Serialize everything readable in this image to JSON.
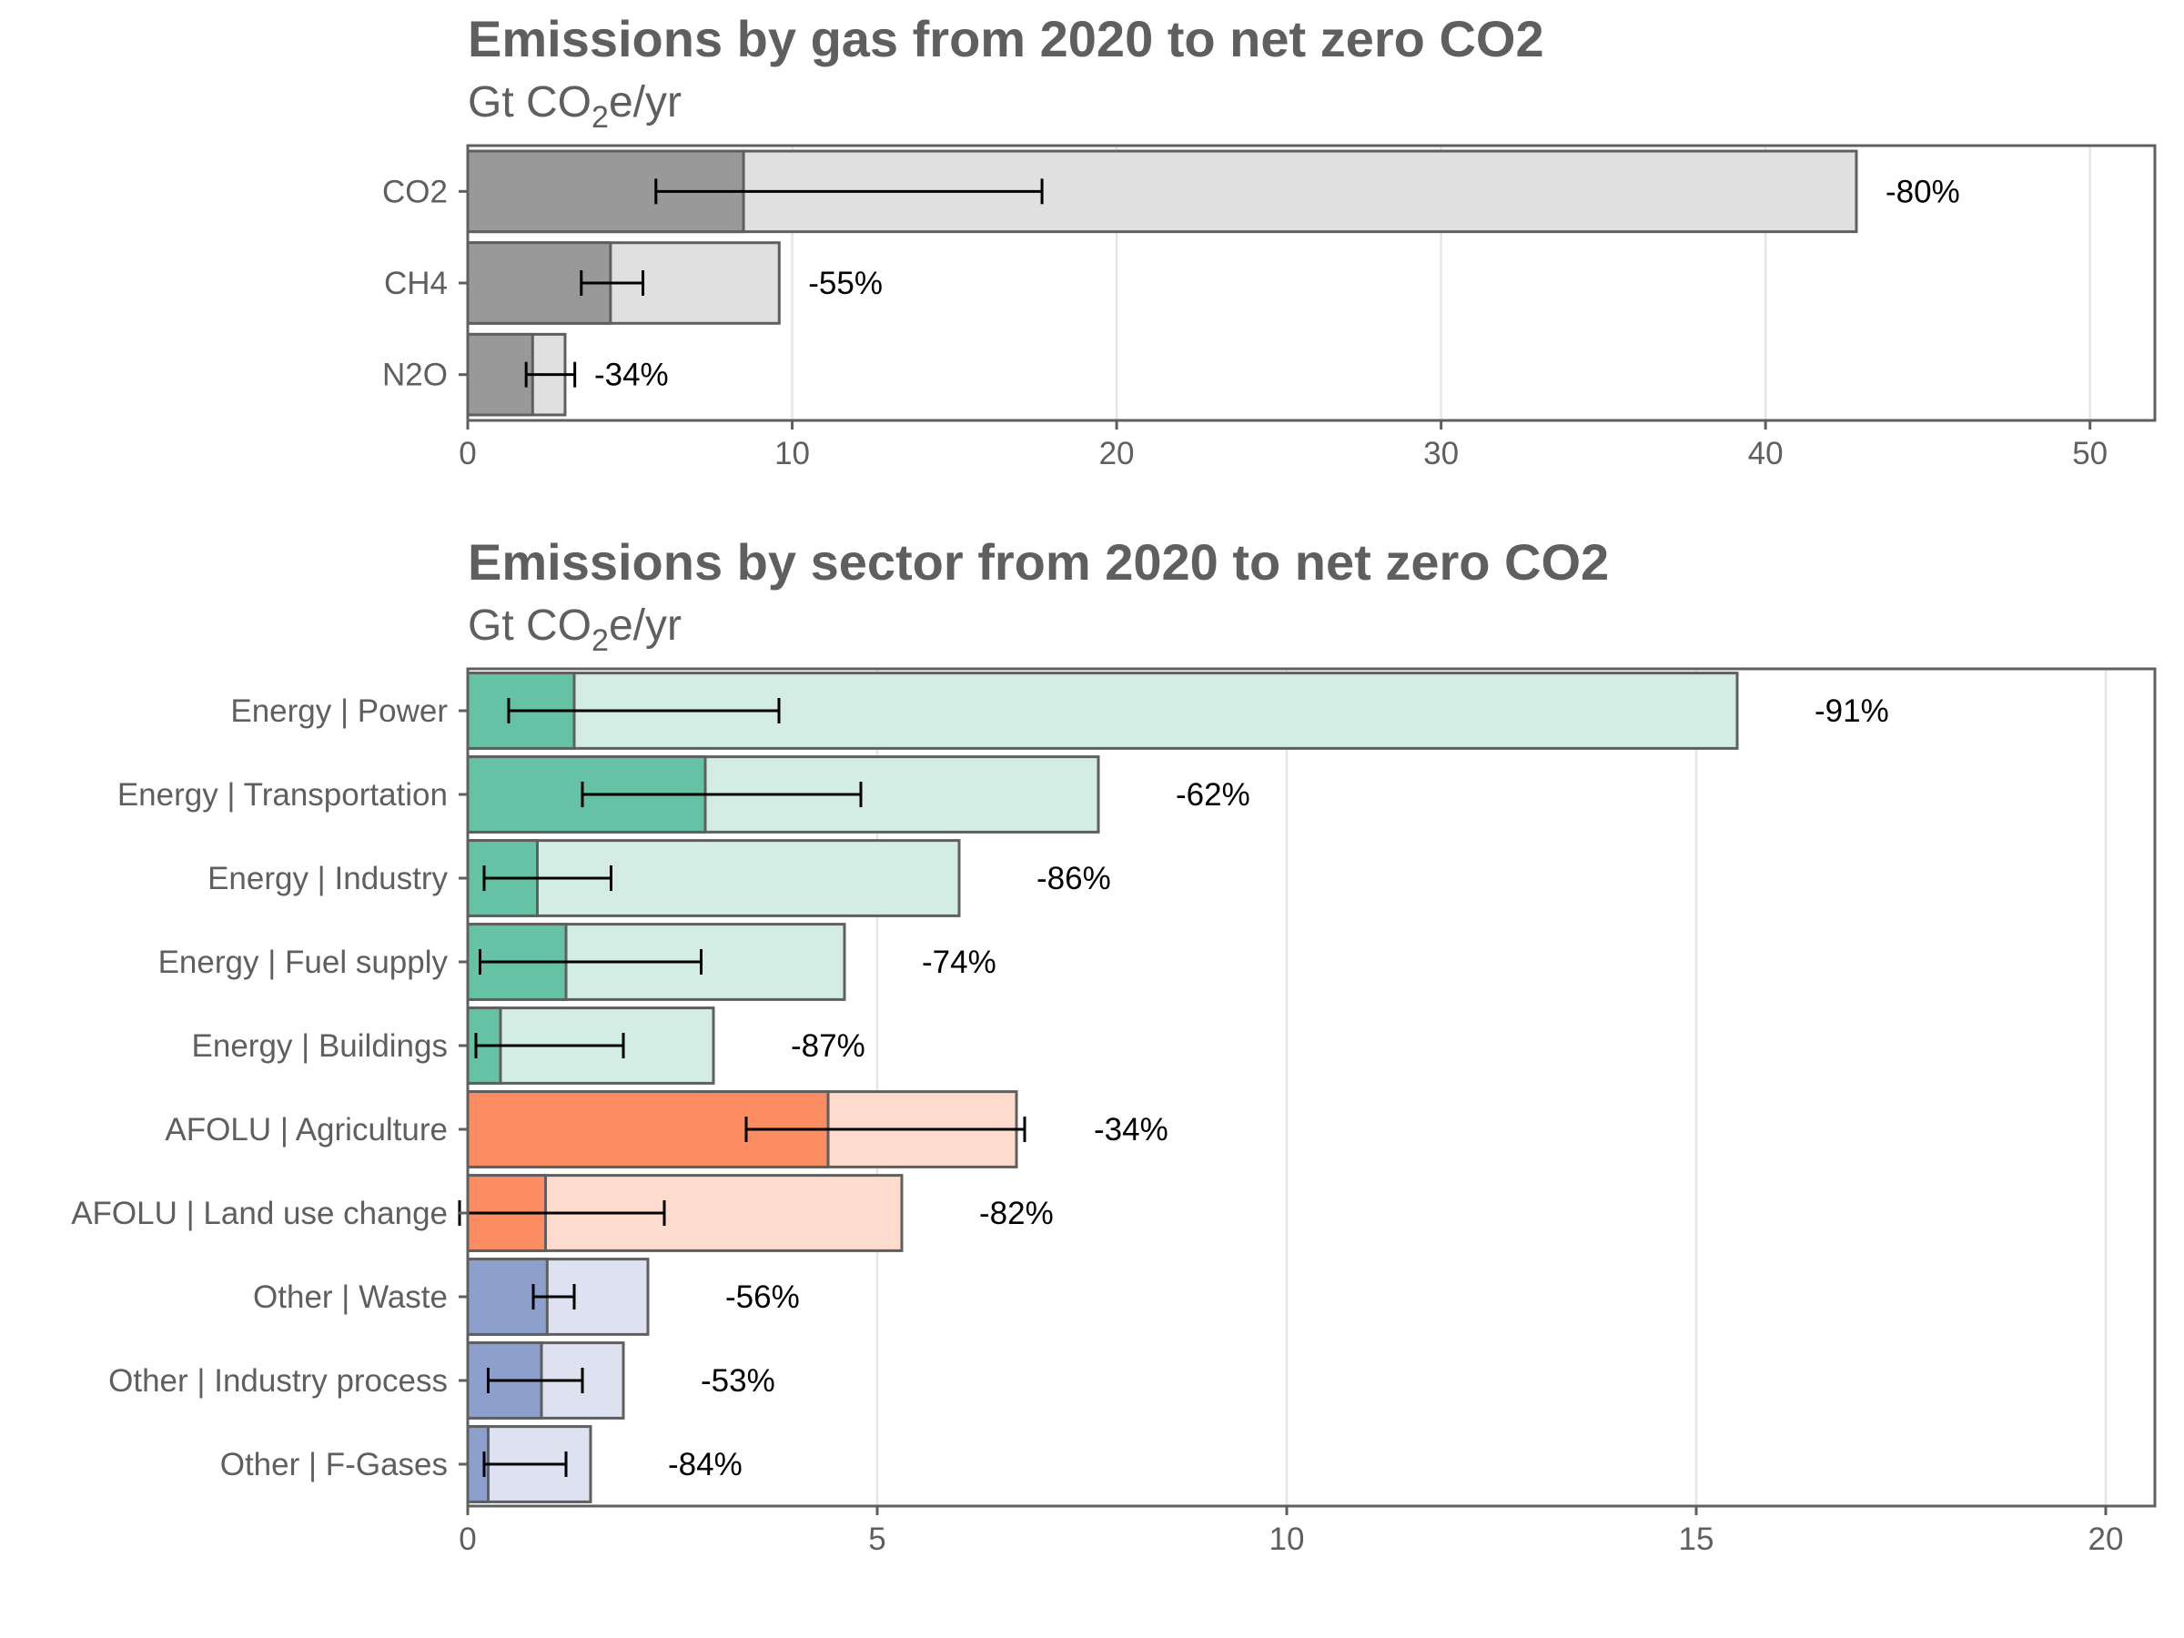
{
  "chart_data": [
    {
      "type": "bar",
      "title": "Emissions by gas from 2020 to net zero CO2",
      "subtitle_prefix": "Gt CO",
      "subtitle_sub": "2",
      "subtitle_suffix": "e/yr",
      "categories": [
        "CO2",
        "CH4",
        "N2O"
      ],
      "series": [
        {
          "values": [
            42.8,
            9.6,
            3.0
          ],
          "color": "#e0e0e0"
        },
        {
          "values": [
            8.5,
            4.4,
            2.0
          ],
          "color": "#999999"
        }
      ],
      "error_low": [
        5.8,
        3.5,
        1.8
      ],
      "error_high": [
        17.7,
        5.4,
        3.3
      ],
      "pct_labels": [
        "-80%",
        "-55%",
        "-34%"
      ],
      "xlim": [
        0,
        52
      ],
      "xticks": [
        0,
        10,
        20,
        30,
        40,
        50
      ],
      "grid": true
    },
    {
      "type": "bar",
      "title": "Emissions by sector from 2020 to net zero CO2",
      "subtitle_prefix": "Gt CO",
      "subtitle_sub": "2",
      "subtitle_suffix": "e/yr",
      "categories": [
        "Energy | Power",
        "Energy | Transportation",
        "Energy | Industry",
        "Energy | Fuel supply",
        "Energy | Buildings",
        "AFOLU | Agriculture",
        "AFOLU | Land use change",
        "Other | Waste",
        "Other | Industry process",
        "Other | F-Gases"
      ],
      "series": [
        {
          "values": [
            15.5,
            7.7,
            6.0,
            4.6,
            3.0,
            6.7,
            5.3,
            2.2,
            1.9,
            1.5
          ]
        },
        {
          "values": [
            1.3,
            2.9,
            0.85,
            1.2,
            0.4,
            4.4,
            0.95,
            0.97,
            0.9,
            0.25
          ]
        }
      ],
      "group_colors": {
        "energy": {
          "light": "#d3ede4",
          "dark": "#66c2a5"
        },
        "afolu": {
          "light": "#fedbcc",
          "dark": "#fc8d62"
        },
        "other": {
          "light": "#dde1f0",
          "dark": "#8da0cb"
        }
      },
      "groups": [
        "energy",
        "energy",
        "energy",
        "energy",
        "energy",
        "afolu",
        "afolu",
        "other",
        "other",
        "other"
      ],
      "error_low": [
        0.5,
        1.4,
        0.2,
        0.15,
        0.1,
        3.4,
        -0.1,
        0.8,
        0.25,
        0.2
      ],
      "error_high": [
        3.8,
        4.8,
        1.75,
        2.85,
        1.9,
        6.8,
        2.4,
        1.3,
        1.4,
        1.2
      ],
      "pct_labels": [
        "-91%",
        "-62%",
        "-86%",
        "-74%",
        "-87%",
        "-34%",
        "-82%",
        "-56%",
        "-53%",
        "-84%"
      ],
      "xlim": [
        0,
        20.6
      ],
      "xticks": [
        0,
        5,
        10,
        15,
        20
      ],
      "grid": true
    }
  ]
}
